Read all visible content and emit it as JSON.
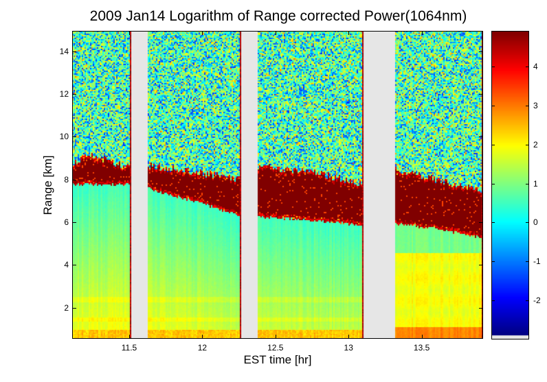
{
  "chart_data": {
    "type": "heatmap",
    "title": "2009 Jan14  Logarithm of Range corrected Power(1064nm)",
    "xlabel": "EST time [hr]",
    "ylabel": "Range [km]",
    "xlim": [
      11.11,
      13.92
    ],
    "ylim": [
      0.55,
      14.95
    ],
    "xticks": [
      "11.5",
      "12",
      "12.5",
      "13",
      "13.5"
    ],
    "xtick_values": [
      11.5,
      12,
      12.5,
      13,
      13.5
    ],
    "yticks": [
      "2",
      "4",
      "6",
      "8",
      "10",
      "12",
      "14"
    ],
    "ytick_values": [
      2,
      4,
      6,
      8,
      10,
      12,
      14
    ],
    "colorbar": {
      "colormap": "jet",
      "clim": [
        -2.9,
        4.9
      ],
      "ticks": [
        "-2",
        "-1",
        "0",
        "1",
        "2",
        "3",
        "4"
      ],
      "tick_values": [
        -2,
        -1,
        0,
        1,
        2,
        3,
        4
      ]
    },
    "data_gaps": [
      [
        11.51,
        11.62
      ],
      [
        12.26,
        12.37
      ],
      [
        13.1,
        13.31
      ]
    ],
    "cloud_layer": [
      {
        "time": 11.11,
        "base_km": 7.8,
        "top_km": 8.7
      },
      {
        "time": 11.2,
        "base_km": 7.8,
        "top_km": 9.2
      },
      {
        "time": 11.5,
        "base_km": 7.8,
        "top_km": 8.6
      },
      {
        "time": 11.62,
        "base_km": 7.6,
        "top_km": 8.7
      },
      {
        "time": 12.0,
        "base_km": 6.9,
        "top_km": 8.3
      },
      {
        "time": 12.26,
        "base_km": 6.3,
        "top_km": 8.1
      },
      {
        "time": 12.37,
        "base_km": 6.3,
        "top_km": 8.6
      },
      {
        "time": 12.75,
        "base_km": 6.1,
        "top_km": 8.4
      },
      {
        "time": 13.1,
        "base_km": 5.9,
        "top_km": 7.8
      },
      {
        "time": 13.31,
        "base_km": 6.0,
        "top_km": 8.5
      },
      {
        "time": 13.6,
        "base_km": 5.7,
        "top_km": 8.0
      },
      {
        "time": 13.92,
        "base_km": 5.3,
        "top_km": 7.5
      }
    ],
    "values_summary": {
      "cloud": 4.9,
      "free_troposphere_noise_mean": 0.8,
      "below_cloud": 0.8,
      "boundary_layer_below_1km": 2.2
    }
  }
}
